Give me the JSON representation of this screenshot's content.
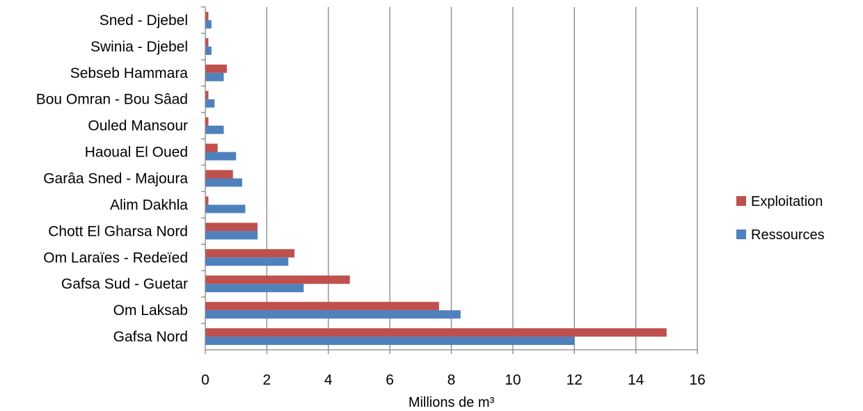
{
  "chart_data": {
    "type": "bar",
    "orientation": "horizontal",
    "categories": [
      "Gafsa Nord",
      "Om Laksab",
      "Gafsa Sud - Guetar",
      "Om Laraïes - Redeïed",
      "Chott El Gharsa Nord",
      "Alim Dakhla",
      "Garâa Sned - Majoura",
      "Haoual El Oued",
      "Ouled Mansour",
      "Bou Omran - Bou Sâad",
      "Sebseb Hammara",
      "Swinia - Djebel",
      "Sned - Djebel"
    ],
    "series": [
      {
        "name": "Ressources",
        "color": "#4F81BD",
        "values": [
          12,
          8.3,
          3.2,
          2.7,
          1.7,
          1.3,
          1.2,
          1.0,
          0.6,
          0.3,
          0.6,
          0.2,
          0.2
        ]
      },
      {
        "name": "Exploitation",
        "color": "#C0504D",
        "values": [
          15,
          7.6,
          4.7,
          2.9,
          1.7,
          0.1,
          0.9,
          0.4,
          0.1,
          0.1,
          0.7,
          0.1,
          0.1
        ]
      }
    ],
    "xlim": [
      0,
      16
    ],
    "xticks": [
      "0",
      "2",
      "4",
      "6",
      "8",
      "10",
      "12",
      "14",
      "16"
    ],
    "xlabel": "Millions de m³",
    "ylabel": "",
    "title": "",
    "grid": "vertical",
    "legend_position": "right"
  }
}
